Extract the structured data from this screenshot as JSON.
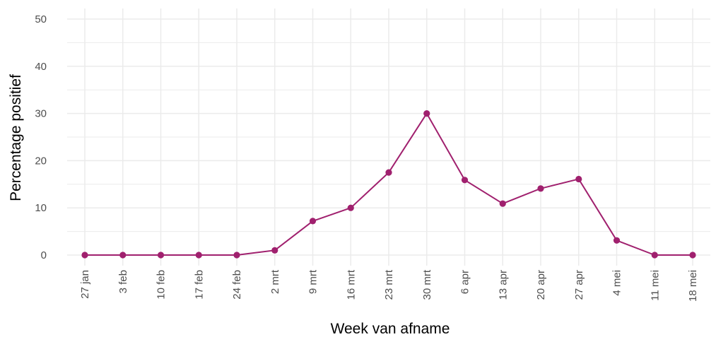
{
  "chart_data": {
    "type": "line",
    "xlabel": "Week van afname",
    "ylabel": "Percentage positief",
    "ylim": [
      0,
      50
    ],
    "yticks": [
      "0",
      "10",
      "20",
      "30",
      "40",
      "50"
    ],
    "categories": [
      "27 jan",
      "3 feb",
      "10 feb",
      "17 feb",
      "24 feb",
      "2 mrt",
      "9 mrt",
      "16 mrt",
      "23 mrt",
      "30 mrt",
      "6 apr",
      "13 apr",
      "20 apr",
      "27 apr",
      "4 mei",
      "11 mei",
      "18 mei"
    ],
    "series": [
      {
        "values": [
          0,
          0,
          0,
          0,
          0,
          1,
          7.2,
          10,
          17.5,
          30,
          15.9,
          10.9,
          14.1,
          16.1,
          3.1,
          0,
          0
        ]
      }
    ],
    "grid": true,
    "colors": {
      "line": "#a0206e",
      "grid": "#ebebeb",
      "tick_text": "#4d4d4d",
      "title_text": "#000000"
    }
  }
}
